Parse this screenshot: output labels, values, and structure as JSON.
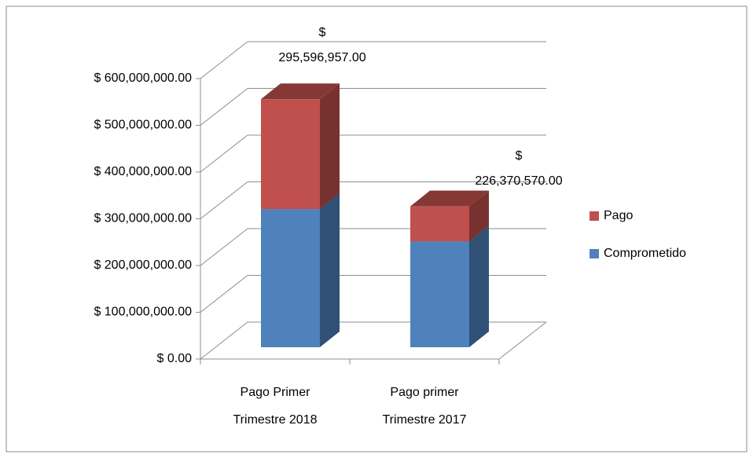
{
  "chart_data": {
    "type": "bar3d_stacked",
    "categories": [
      "Pago Primer\nTrimestre 2018",
      "Pago primer\nTrimestre 2017"
    ],
    "series": [
      {
        "name": "Comprometido",
        "color": "#4f81bd",
        "values": [
          295596957,
          226370570
        ],
        "value_labels": [
          "$\n295,596,957.00",
          "$\n226,370,570.00"
        ]
      },
      {
        "name": "Pago",
        "color": "#c0504d",
        "values": [
          235000000,
          75000000
        ]
      }
    ],
    "ylim": [
      0,
      600000000
    ],
    "yticks": [
      {
        "value": 0,
        "label": "$ 0.00"
      },
      {
        "value": 100000000,
        "label": "$ 100,000,000.00"
      },
      {
        "value": 200000000,
        "label": "$ 200,000,000.00"
      },
      {
        "value": 300000000,
        "label": "$ 300,000,000.00"
      },
      {
        "value": 400000000,
        "label": "$ 400,000,000.00"
      },
      {
        "value": 500000000,
        "label": "$ 500,000,000.00"
      },
      {
        "value": 600000000,
        "label": "$ 600,000,000.00"
      }
    ],
    "grid": true,
    "legend": "right"
  }
}
